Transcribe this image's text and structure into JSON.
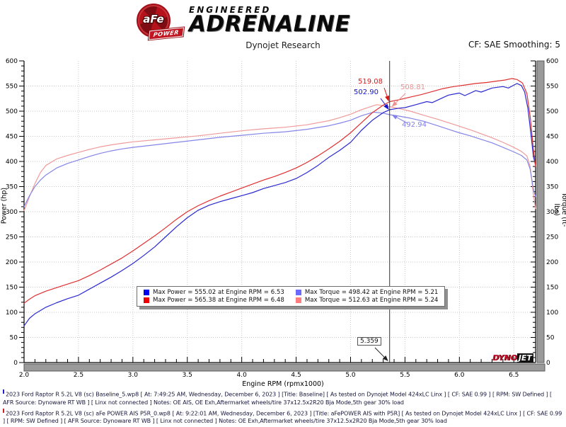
{
  "header": {
    "logo": {
      "circle_text": "aFe",
      "banner_text": "POWER",
      "line1": "ENGINEERED",
      "line2": "ADRENALINE"
    },
    "subtitle": "Dynojet Research",
    "smoothing_label": "CF: SAE Smoothing: 5"
  },
  "chart_data": {
    "type": "line",
    "xlabel": "Engine RPM (rpmx1000)",
    "ylabel_left": "Power (hp)",
    "ylabel_right": "Torque (ft-lbs)",
    "xlim": [
      2.0,
      6.7
    ],
    "ylim": [
      0,
      600
    ],
    "x_major_ticks": [
      2.0,
      2.5,
      3.0,
      3.5,
      4.0,
      4.5,
      5.0,
      5.5,
      6.0,
      6.5
    ],
    "x_minor_step": 0.1,
    "y_major_step": 50,
    "y_minor_step": 10,
    "grid": true,
    "legend_position": "bottom-center",
    "cursor": {
      "rpm": 5.359,
      "label": "5.359"
    },
    "annotations": [
      {
        "text": "519.08",
        "color": "#dd1414",
        "value": 519.08
      },
      {
        "text": "502.90",
        "color": "#1414cc",
        "value": 502.9
      },
      {
        "text": "508.81",
        "color": "#ef8f8f",
        "value": 508.81
      },
      {
        "text": "492.94",
        "color": "#8080e8",
        "value": 492.94
      }
    ],
    "legend": {
      "items": [
        {
          "color": "#0000ee",
          "text": "Max Power = 555.02 at Engine RPM = 6.53"
        },
        {
          "color": "#ee0000",
          "text": "Max Power = 565.38 at Engine RPM = 6.48"
        },
        {
          "color": "#6a6aff",
          "text": "Max Torque = 498.42 at Engine RPM = 5.21"
        },
        {
          "color": "#ff7d7d",
          "text": "Max Torque = 512.63 at Engine RPM = 5.24"
        }
      ]
    },
    "watermark": {
      "part1": "DYNO",
      "part2": "JET"
    },
    "series": [
      {
        "name": "aFe POWER AIS Torque",
        "color": "#f09a9a",
        "axis": "torque",
        "points": [
          [
            2.0,
            302
          ],
          [
            2.05,
            330
          ],
          [
            2.1,
            356
          ],
          [
            2.15,
            378
          ],
          [
            2.2,
            392
          ],
          [
            2.3,
            405
          ],
          [
            2.4,
            412
          ],
          [
            2.5,
            418
          ],
          [
            2.6,
            424
          ],
          [
            2.7,
            429
          ],
          [
            2.8,
            433
          ],
          [
            2.9,
            436
          ],
          [
            3.0,
            439
          ],
          [
            3.2,
            443
          ],
          [
            3.4,
            447
          ],
          [
            3.6,
            451
          ],
          [
            3.8,
            456
          ],
          [
            4.0,
            461
          ],
          [
            4.2,
            465
          ],
          [
            4.4,
            468
          ],
          [
            4.6,
            473
          ],
          [
            4.8,
            481
          ],
          [
            4.9,
            487
          ],
          [
            5.0,
            494
          ],
          [
            5.1,
            503
          ],
          [
            5.24,
            513
          ],
          [
            5.3,
            511
          ],
          [
            5.36,
            509
          ],
          [
            5.45,
            505
          ],
          [
            5.55,
            500
          ],
          [
            5.67,
            492
          ],
          [
            5.8,
            484
          ],
          [
            5.9,
            477
          ],
          [
            6.0,
            470
          ],
          [
            6.1,
            463
          ],
          [
            6.2,
            455
          ],
          [
            6.3,
            447
          ],
          [
            6.4,
            438
          ],
          [
            6.5,
            428
          ],
          [
            6.57,
            420
          ],
          [
            6.62,
            411
          ],
          [
            6.65,
            390
          ],
          [
            6.68,
            335
          ],
          [
            6.7,
            306
          ]
        ]
      },
      {
        "name": "Baseline Torque",
        "color": "#8585e8",
        "axis": "torque",
        "points": [
          [
            2.0,
            310
          ],
          [
            2.05,
            332
          ],
          [
            2.1,
            350
          ],
          [
            2.15,
            363
          ],
          [
            2.2,
            373
          ],
          [
            2.3,
            387
          ],
          [
            2.4,
            396
          ],
          [
            2.5,
            403
          ],
          [
            2.6,
            410
          ],
          [
            2.7,
            416
          ],
          [
            2.8,
            421
          ],
          [
            2.9,
            425
          ],
          [
            3.0,
            428
          ],
          [
            3.2,
            433
          ],
          [
            3.4,
            438
          ],
          [
            3.6,
            443
          ],
          [
            3.8,
            448
          ],
          [
            4.0,
            452
          ],
          [
            4.2,
            456
          ],
          [
            4.4,
            459
          ],
          [
            4.6,
            464
          ],
          [
            4.8,
            471
          ],
          [
            4.9,
            476
          ],
          [
            5.0,
            482
          ],
          [
            5.1,
            491
          ],
          [
            5.21,
            498
          ],
          [
            5.3,
            496
          ],
          [
            5.36,
            493
          ],
          [
            5.45,
            490
          ],
          [
            5.55,
            486
          ],
          [
            5.67,
            480
          ],
          [
            5.8,
            471
          ],
          [
            5.9,
            464
          ],
          [
            6.0,
            457
          ],
          [
            6.1,
            451
          ],
          [
            6.2,
            444
          ],
          [
            6.3,
            437
          ],
          [
            6.4,
            428
          ],
          [
            6.5,
            419
          ],
          [
            6.57,
            412
          ],
          [
            6.62,
            403
          ],
          [
            6.65,
            385
          ],
          [
            6.68,
            345
          ],
          [
            6.7,
            330
          ]
        ]
      },
      {
        "name": "Baseline Power",
        "color": "#2a2ad0",
        "axis": "power",
        "points": [
          [
            2.0,
            73
          ],
          [
            2.05,
            88
          ],
          [
            2.1,
            97
          ],
          [
            2.2,
            110
          ],
          [
            2.3,
            119
          ],
          [
            2.4,
            127
          ],
          [
            2.5,
            134
          ],
          [
            2.6,
            146
          ],
          [
            2.7,
            158
          ],
          [
            2.8,
            170
          ],
          [
            2.9,
            183
          ],
          [
            3.0,
            197
          ],
          [
            3.1,
            213
          ],
          [
            3.2,
            230
          ],
          [
            3.3,
            250
          ],
          [
            3.4,
            270
          ],
          [
            3.5,
            288
          ],
          [
            3.6,
            303
          ],
          [
            3.7,
            313
          ],
          [
            3.8,
            320
          ],
          [
            3.9,
            326
          ],
          [
            4.0,
            332
          ],
          [
            4.1,
            338
          ],
          [
            4.2,
            346
          ],
          [
            4.3,
            352
          ],
          [
            4.4,
            358
          ],
          [
            4.5,
            366
          ],
          [
            4.6,
            378
          ],
          [
            4.7,
            392
          ],
          [
            4.8,
            408
          ],
          [
            4.9,
            422
          ],
          [
            5.0,
            438
          ],
          [
            5.1,
            462
          ],
          [
            5.2,
            482
          ],
          [
            5.3,
            497
          ],
          [
            5.36,
            503
          ],
          [
            5.45,
            506
          ],
          [
            5.5,
            507
          ],
          [
            5.6,
            513
          ],
          [
            5.7,
            519
          ],
          [
            5.75,
            517
          ],
          [
            5.85,
            527
          ],
          [
            5.9,
            532
          ],
          [
            6.0,
            536
          ],
          [
            6.05,
            531
          ],
          [
            6.15,
            541
          ],
          [
            6.2,
            538
          ],
          [
            6.3,
            546
          ],
          [
            6.4,
            549
          ],
          [
            6.45,
            546
          ],
          [
            6.53,
            555
          ],
          [
            6.57,
            551
          ],
          [
            6.6,
            538
          ],
          [
            6.63,
            505
          ],
          [
            6.66,
            450
          ],
          [
            6.68,
            410
          ],
          [
            6.7,
            392
          ]
        ]
      },
      {
        "name": "aFe POWER AIS Power",
        "color": "#e03030",
        "axis": "power",
        "points": [
          [
            2.0,
            118
          ],
          [
            2.05,
            126
          ],
          [
            2.1,
            133
          ],
          [
            2.2,
            142
          ],
          [
            2.3,
            149
          ],
          [
            2.4,
            156
          ],
          [
            2.5,
            163
          ],
          [
            2.6,
            173
          ],
          [
            2.7,
            184
          ],
          [
            2.8,
            196
          ],
          [
            2.9,
            208
          ],
          [
            3.0,
            222
          ],
          [
            3.1,
            237
          ],
          [
            3.2,
            252
          ],
          [
            3.3,
            268
          ],
          [
            3.4,
            285
          ],
          [
            3.5,
            300
          ],
          [
            3.6,
            312
          ],
          [
            3.7,
            322
          ],
          [
            3.8,
            331
          ],
          [
            3.9,
            339
          ],
          [
            4.0,
            347
          ],
          [
            4.1,
            355
          ],
          [
            4.2,
            363
          ],
          [
            4.3,
            370
          ],
          [
            4.4,
            378
          ],
          [
            4.5,
            387
          ],
          [
            4.6,
            398
          ],
          [
            4.7,
            411
          ],
          [
            4.8,
            425
          ],
          [
            4.9,
            440
          ],
          [
            5.0,
            457
          ],
          [
            5.1,
            477
          ],
          [
            5.2,
            497
          ],
          [
            5.3,
            512
          ],
          [
            5.36,
            519
          ],
          [
            5.45,
            523
          ],
          [
            5.55,
            528
          ],
          [
            5.65,
            533
          ],
          [
            5.75,
            539
          ],
          [
            5.85,
            545
          ],
          [
            5.95,
            549
          ],
          [
            6.05,
            552
          ],
          [
            6.15,
            555
          ],
          [
            6.25,
            557
          ],
          [
            6.35,
            560
          ],
          [
            6.42,
            562
          ],
          [
            6.48,
            565
          ],
          [
            6.53,
            563
          ],
          [
            6.58,
            556
          ],
          [
            6.62,
            535
          ],
          [
            6.65,
            490
          ],
          [
            6.68,
            425
          ],
          [
            6.7,
            390
          ]
        ]
      }
    ]
  },
  "footer": {
    "runs": [
      {
        "marker_color": "#2222cc",
        "text": "2023 Ford Raptor R 5.2L V8 (sc) Baseline_5.wp8 [ At: 7:49:25 AM, Wednesday, December 6, 2023 ] [Title: Baseline]  [ As tested on Dynojet Model 424xLC Linx ] [ CF: SAE 0.99 ] [ RPM: SW Defined ] [ AFR Source: Dynoware RT WB ] [ Linx not connected ] Notes: OE AIS, OE Exh,Aftermarket wheels/tire 37x12.5x2R20 Bja Mode,5th gear 30% load"
      },
      {
        "marker_color": "#cc2222",
        "text": "2023 Ford Raptor R 5.2L V8 (sc) aFe POWER AIS P5R_0.wp8 [ At: 9:22:01 AM, Wednesday, December 6, 2023 ] [Title: aFePOWER AIS with P5R]  [ As tested on Dynojet Model 424xLC Linx ] [ CF: SAE 0.99 ] [ RPM: SW Defined ] [ AFR Source: Dynoware RT WB ] [ Linx not connected ] Notes: OE Exh,Aftermarket wheels/tire 37x12.5x2R20 Bja Mode,5th gear 30% load"
      }
    ]
  }
}
